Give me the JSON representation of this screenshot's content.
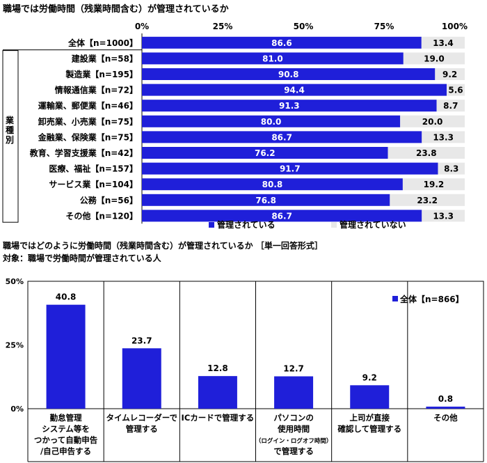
{
  "chart_data": [
    {
      "type": "bar",
      "orientation": "horizontal",
      "stacked": true,
      "title": "職場では労働時間（残業時間含む）が管理されているか",
      "xlim": [
        0,
        100
      ],
      "ticks": [
        "0%",
        "25%",
        "50%",
        "75%",
        "100%"
      ],
      "group_label": "業種別",
      "categories": [
        "全体【n=1000】",
        "建設業【n=58】",
        "製造業【n=195】",
        "情報通信業【n=72】",
        "運輸業、郵便業【n=46】",
        "卸売業、小売業【n=75】",
        "金融業、保険業【n=75】",
        "教育、学習支援業【n=42】",
        "医療、福祉【n=157】",
        "サービス業【n=104】",
        "公務【n=56】",
        "その他【n=120】"
      ],
      "series": [
        {
          "name": "管理されている",
          "color": "#1f1fd9",
          "values": [
            86.6,
            81.0,
            90.8,
            94.4,
            91.3,
            80.0,
            86.7,
            76.2,
            91.7,
            80.8,
            76.8,
            86.7
          ],
          "labels": [
            "86.6",
            "81.0",
            "90.8",
            "94.4",
            "91.3",
            "80.0",
            "86.7",
            "76.2",
            "91.7",
            "80.8",
            "76.8",
            "86.7"
          ]
        },
        {
          "name": "管理されていない",
          "color": "#e8e8e8",
          "values": [
            13.4,
            19.0,
            9.2,
            5.6,
            8.7,
            20.0,
            13.3,
            23.8,
            8.3,
            19.2,
            23.2,
            13.3
          ],
          "labels": [
            "13.4",
            "19.0",
            "9.2",
            "5.6",
            "8.7",
            "20.0",
            "13.3",
            "23.8",
            "8.3",
            "19.2",
            "23.2",
            "13.3"
          ]
        }
      ],
      "legend_position": "bottom"
    },
    {
      "type": "bar",
      "orientation": "vertical",
      "title": "職場ではどのように労働時間（残業時間含む）が管理されているか ［単一回答形式］",
      "subtitle": "対象：職場で労働時間が管理されている人",
      "ylim": [
        0,
        50
      ],
      "ticks": [
        "0%",
        "25%",
        "50%"
      ],
      "categories": [
        [
          "勤怠管理",
          "システム等を",
          "つかって自動申告",
          "/自己申告する"
        ],
        [
          "タイムレコーダーで",
          "管理する"
        ],
        [
          "ICカードで管理する"
        ],
        [
          "パソコンの",
          "使用時間",
          "（ログイン・ログオフ時間）",
          "で管理する"
        ],
        [
          "上司が直接",
          "確認して管理する"
        ],
        [
          "その他"
        ]
      ],
      "series": [
        {
          "name": "全体【n=866】",
          "color": "#1f1fd9",
          "values": [
            40.8,
            23.7,
            12.8,
            12.7,
            9.2,
            0.8
          ],
          "labels": [
            "40.8",
            "23.7",
            "12.8",
            "12.7",
            "9.2",
            "0.8"
          ]
        }
      ],
      "grid": false,
      "legend_position": "top-right"
    }
  ]
}
